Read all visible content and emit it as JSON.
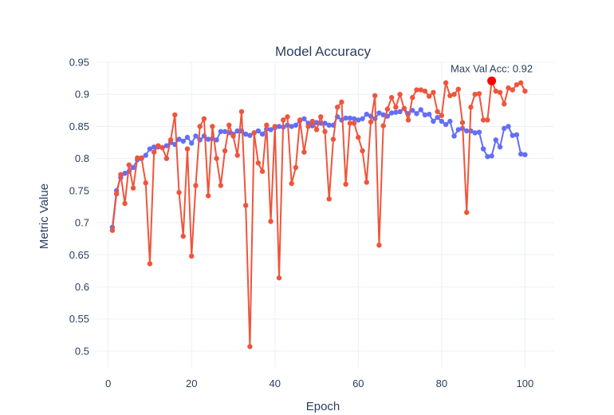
{
  "chart_data": {
    "type": "line",
    "title": "Model Accuracy",
    "xlabel": "Epoch",
    "ylabel": "Metric Value",
    "xlim": [
      -3,
      107
    ],
    "ylim": [
      0.475,
      0.95
    ],
    "xticks": [
      0,
      20,
      40,
      60,
      80,
      100
    ],
    "yticks": [
      0.5,
      0.55,
      0.6,
      0.65,
      0.7,
      0.75,
      0.8,
      0.85,
      0.9,
      0.95
    ],
    "yticklabels": [
      "0.5",
      "0.55",
      "0.6",
      "0.65",
      "0.7",
      "0.75",
      "0.8",
      "0.85",
      "0.9",
      "0.95"
    ],
    "grid": true,
    "legend": "none",
    "x": [
      1,
      2,
      3,
      4,
      5,
      6,
      7,
      8,
      9,
      10,
      11,
      12,
      13,
      14,
      15,
      16,
      17,
      18,
      19,
      20,
      21,
      22,
      23,
      24,
      25,
      26,
      27,
      28,
      29,
      30,
      31,
      32,
      33,
      34,
      35,
      36,
      37,
      38,
      39,
      40,
      41,
      42,
      43,
      44,
      45,
      46,
      47,
      48,
      49,
      50,
      51,
      52,
      53,
      54,
      55,
      56,
      57,
      58,
      59,
      60,
      61,
      62,
      63,
      64,
      65,
      66,
      67,
      68,
      69,
      70,
      71,
      72,
      73,
      74,
      75,
      76,
      77,
      78,
      79,
      80,
      81,
      82,
      83,
      84,
      85,
      86,
      87,
      88,
      89,
      90,
      91,
      92,
      93,
      94,
      95,
      96,
      97,
      98,
      99,
      100
    ],
    "series": [
      {
        "color": "#636efa",
        "values": [
          0.693,
          0.75,
          0.77,
          0.777,
          0.78,
          0.786,
          0.798,
          0.8,
          0.805,
          0.815,
          0.818,
          0.818,
          0.817,
          0.82,
          0.825,
          0.822,
          0.83,
          0.827,
          0.833,
          0.824,
          0.835,
          0.829,
          0.835,
          0.83,
          0.831,
          0.829,
          0.842,
          0.842,
          0.84,
          0.838,
          0.843,
          0.843,
          0.838,
          0.836,
          0.84,
          0.843,
          0.838,
          0.846,
          0.845,
          0.848,
          0.85,
          0.849,
          0.852,
          0.85,
          0.852,
          0.859,
          0.862,
          0.855,
          0.851,
          0.856,
          0.855,
          0.855,
          0.852,
          0.852,
          0.865,
          0.86,
          0.863,
          0.863,
          0.862,
          0.86,
          0.862,
          0.869,
          0.866,
          0.862,
          0.871,
          0.868,
          0.866,
          0.871,
          0.872,
          0.873,
          0.878,
          0.87,
          0.875,
          0.87,
          0.876,
          0.868,
          0.869,
          0.858,
          0.864,
          0.858,
          0.853,
          0.858,
          0.835,
          0.845,
          0.847,
          0.843,
          0.843,
          0.84,
          0.841,
          0.815,
          0.803,
          0.804,
          0.829,
          0.818,
          0.847,
          0.85,
          0.836,
          0.837,
          0.807,
          0.806
        ]
      },
      {
        "color": "#ef553b",
        "values": [
          0.688,
          0.745,
          0.775,
          0.73,
          0.79,
          0.754,
          0.801,
          0.801,
          0.762,
          0.636,
          0.81,
          0.82,
          0.817,
          0.8,
          0.829,
          0.868,
          0.747,
          0.679,
          0.815,
          0.648,
          0.758,
          0.85,
          0.862,
          0.742,
          0.85,
          0.8,
          0.758,
          0.812,
          0.852,
          0.835,
          0.805,
          0.873,
          0.727,
          0.507,
          0.84,
          0.793,
          0.78,
          0.852,
          0.702,
          0.85,
          0.614,
          0.86,
          0.865,
          0.761,
          0.786,
          0.86,
          0.81,
          0.85,
          0.858,
          0.845,
          0.865,
          0.842,
          0.737,
          0.83,
          0.88,
          0.888,
          0.76,
          0.855,
          0.855,
          0.833,
          0.812,
          0.763,
          0.857,
          0.898,
          0.665,
          0.851,
          0.877,
          0.895,
          0.88,
          0.9,
          0.878,
          0.86,
          0.895,
          0.907,
          0.907,
          0.905,
          0.897,
          0.903,
          0.873,
          0.867,
          0.918,
          0.898,
          0.9,
          0.908,
          0.856,
          0.716,
          0.88,
          0.9,
          0.901,
          0.86,
          0.86,
          0.921,
          0.905,
          0.903,
          0.885,
          0.91,
          0.907,
          0.915,
          0.918,
          0.905
        ]
      }
    ],
    "highlight": {
      "x": 92,
      "y": 0.921,
      "color": "#ff0000"
    },
    "annotation": {
      "text": "Max Val Acc: 0.92",
      "x": 92,
      "y": 0.921
    }
  }
}
